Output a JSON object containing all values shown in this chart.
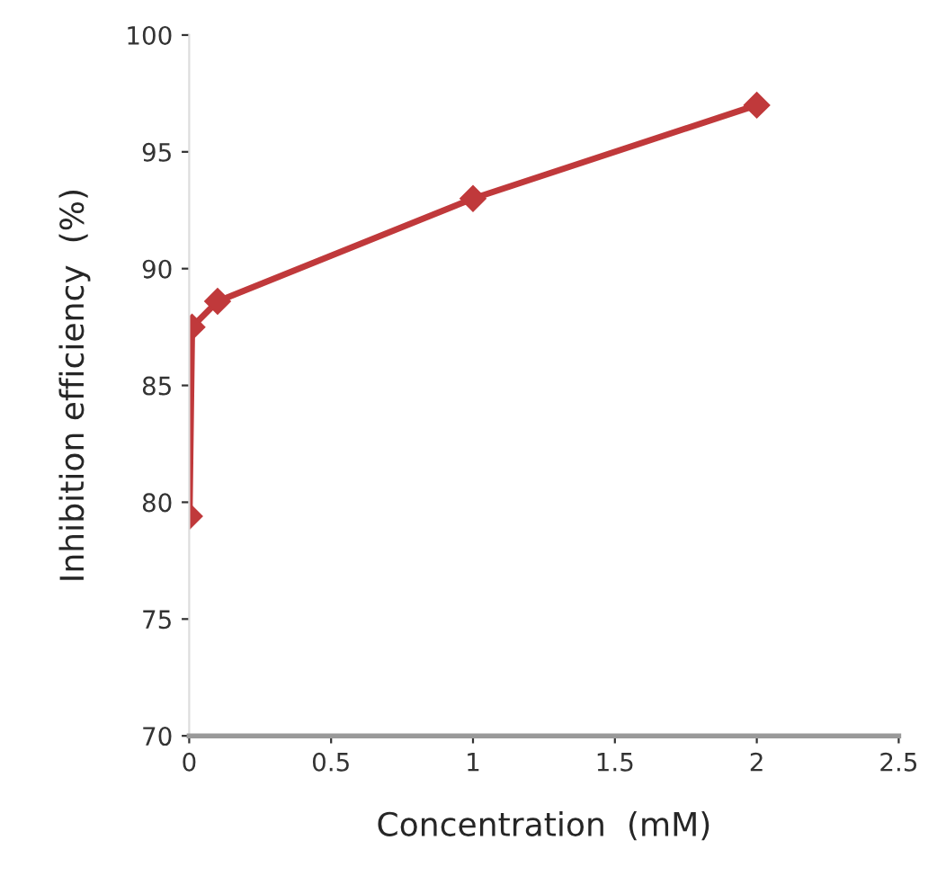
{
  "chart_data": {
    "type": "line",
    "xlabel": "Concentration  (mM)",
    "ylabel": "Inhibition efficiency  (%)",
    "x": [
      0.001,
      0.01,
      0.1,
      1,
      2
    ],
    "series": [
      {
        "color": "#c0393b",
        "values": [
          79.4,
          87.5,
          88.6,
          93.0,
          97.0
        ]
      }
    ],
    "xlim": [
      0,
      2.5
    ],
    "xticks": [
      0,
      0.5,
      1,
      1.5,
      2,
      2.5
    ],
    "ylim": [
      70,
      100
    ],
    "yticks": [
      70,
      75,
      80,
      85,
      90,
      95,
      100
    ],
    "marker": "diamond",
    "line_style": "solid",
    "grid": false,
    "legend": false
  }
}
